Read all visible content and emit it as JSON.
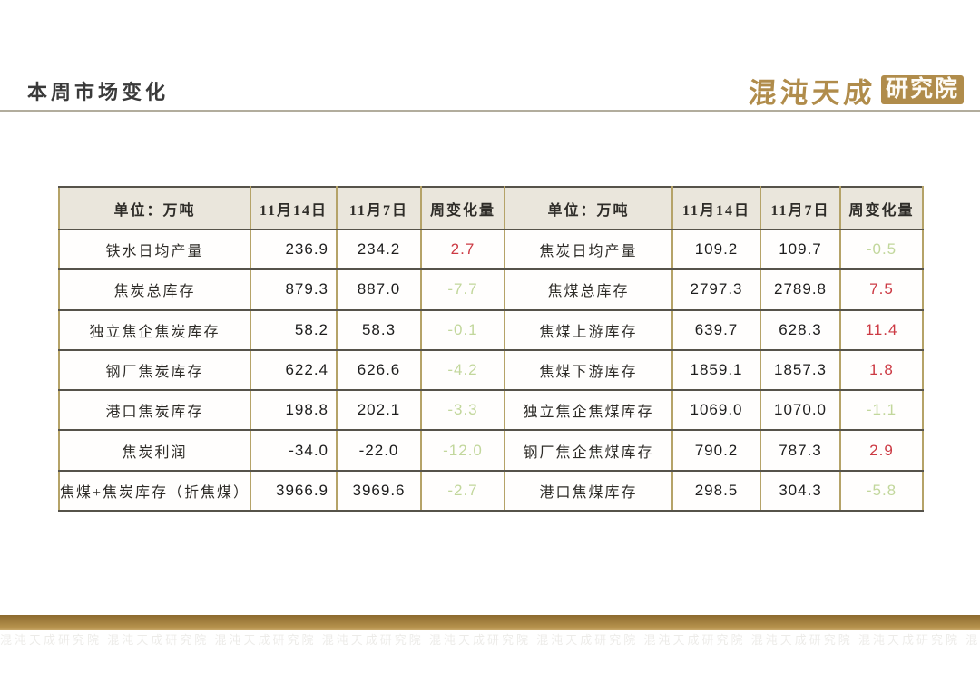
{
  "page": {
    "title": "本周市场变化"
  },
  "logo": {
    "brand": "混沌天成",
    "suffix": "研究院"
  },
  "colors": {
    "accent_gold": "#b08c4b",
    "positive_change": "#cc3a44",
    "negative_change": "#c2d79c",
    "header_bg": "#eae6dc",
    "vertical_border": "#b5a368",
    "horizontal_border": "#56534a",
    "footer_bar": "#a88540"
  },
  "table": {
    "col_headers": [
      "单位：万吨",
      "11月14日",
      "11月7日",
      "周变化量"
    ],
    "left_rows": [
      {
        "label": "铁水日均产量",
        "nov14": "236.9",
        "nov7": "234.2",
        "change": "2.7"
      },
      {
        "label": "焦炭总库存",
        "nov14": "879.3",
        "nov7": "887.0",
        "change": "-7.7"
      },
      {
        "label": "独立焦企焦炭库存",
        "nov14": "58.2",
        "nov7": "58.3",
        "change": "-0.1"
      },
      {
        "label": "钢厂焦炭库存",
        "nov14": "622.4",
        "nov7": "626.6",
        "change": "-4.2"
      },
      {
        "label": "港口焦炭库存",
        "nov14": "198.8",
        "nov7": "202.1",
        "change": "-3.3"
      },
      {
        "label": "焦炭利润",
        "nov14": "-34.0",
        "nov7": "-22.0",
        "change": "-12.0"
      },
      {
        "label": "焦煤+焦炭库存（折焦煤）",
        "nov14": "3966.9",
        "nov7": "3969.6",
        "change": "-2.7"
      }
    ],
    "right_rows": [
      {
        "label": "焦炭日均产量",
        "nov14": "109.2",
        "nov7": "109.7",
        "change": "-0.5"
      },
      {
        "label": "焦煤总库存",
        "nov14": "2797.3",
        "nov7": "2789.8",
        "change": "7.5"
      },
      {
        "label": "焦煤上游库存",
        "nov14": "639.7",
        "nov7": "628.3",
        "change": "11.4"
      },
      {
        "label": "焦煤下游库存",
        "nov14": "1859.1",
        "nov7": "1857.3",
        "change": "1.8"
      },
      {
        "label": "独立焦企焦煤库存",
        "nov14": "1069.0",
        "nov7": "1070.0",
        "change": "-1.1"
      },
      {
        "label": "钢厂焦企焦煤库存",
        "nov14": "790.2",
        "nov7": "787.3",
        "change": "2.9"
      },
      {
        "label": "港口焦煤库存",
        "nov14": "298.5",
        "nov7": "304.3",
        "change": "-5.8"
      }
    ]
  },
  "footer": {
    "watermark_text": "混沌天成研究院",
    "watermark_repeat": 16
  }
}
